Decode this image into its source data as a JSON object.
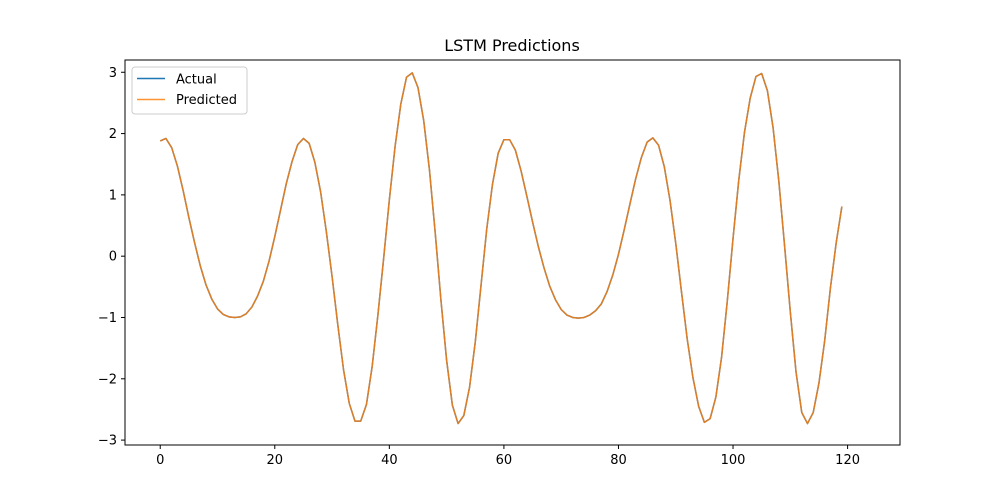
{
  "chart_data": {
    "type": "line",
    "title": "LSTM Predictions",
    "xlabel": "",
    "ylabel": "",
    "xlim": [
      -6.15,
      129.15
    ],
    "ylim": [
      -3.08,
      3.2
    ],
    "x_ticks": [
      0,
      20,
      40,
      60,
      80,
      100,
      120
    ],
    "y_ticks": [
      -3,
      -2,
      -1,
      0,
      1,
      2,
      3
    ],
    "x_tick_labels": [
      "0",
      "20",
      "40",
      "60",
      "80",
      "100",
      "120"
    ],
    "y_tick_labels": [
      "−3",
      "−2",
      "−1",
      "0",
      "1",
      "2",
      "3"
    ],
    "grid": false,
    "legend_position": "upper-left",
    "x_start": 0,
    "series": [
      {
        "name": "Actual",
        "color": "#1f77b4",
        "values": [
          1.88,
          1.92,
          1.77,
          1.47,
          1.07,
          0.63,
          0.22,
          -0.16,
          -0.47,
          -0.7,
          -0.86,
          -0.95,
          -0.99,
          -1.0,
          -0.99,
          -0.94,
          -0.83,
          -0.65,
          -0.41,
          -0.08,
          0.32,
          0.75,
          1.18,
          1.54,
          1.82,
          1.92,
          1.84,
          1.53,
          1.05,
          0.4,
          -0.33,
          -1.12,
          -1.85,
          -2.4,
          -2.69,
          -2.69,
          -2.42,
          -1.8,
          -0.96,
          -0.04,
          0.92,
          1.79,
          2.48,
          2.92,
          2.99,
          2.75,
          2.21,
          1.41,
          0.39,
          -0.71,
          -1.7,
          -2.43,
          -2.73,
          -2.6,
          -2.14,
          -1.4,
          -0.48,
          0.44,
          1.17,
          1.68,
          1.9,
          1.9,
          1.73,
          1.39,
          0.98,
          0.56,
          0.16,
          -0.19,
          -0.49,
          -0.71,
          -0.87,
          -0.96,
          -1.0,
          -1.01,
          -1.0,
          -0.96,
          -0.89,
          -0.78,
          -0.58,
          -0.31,
          0.03,
          0.43,
          0.85,
          1.26,
          1.61,
          1.86,
          1.93,
          1.81,
          1.46,
          0.91,
          0.21,
          -0.58,
          -1.35,
          -1.98,
          -2.45,
          -2.71,
          -2.65,
          -2.3,
          -1.65,
          -0.73,
          0.29,
          1.24,
          2.02,
          2.58,
          2.93,
          2.98,
          2.7,
          2.09,
          1.22,
          0.17,
          -0.91,
          -1.89,
          -2.55,
          -2.73,
          -2.55,
          -2.07,
          -1.38,
          -0.52,
          0.21,
          0.81
        ]
      },
      {
        "name": "Predicted",
        "color": "#ff7f0e",
        "values": [
          1.88,
          1.92,
          1.77,
          1.47,
          1.07,
          0.63,
          0.22,
          -0.16,
          -0.47,
          -0.7,
          -0.86,
          -0.95,
          -0.99,
          -1.0,
          -0.99,
          -0.94,
          -0.83,
          -0.65,
          -0.41,
          -0.08,
          0.32,
          0.75,
          1.18,
          1.54,
          1.82,
          1.92,
          1.84,
          1.53,
          1.05,
          0.4,
          -0.33,
          -1.12,
          -1.85,
          -2.4,
          -2.69,
          -2.69,
          -2.42,
          -1.8,
          -0.96,
          -0.04,
          0.92,
          1.79,
          2.48,
          2.92,
          2.99,
          2.75,
          2.21,
          1.41,
          0.39,
          -0.71,
          -1.7,
          -2.43,
          -2.73,
          -2.6,
          -2.14,
          -1.4,
          -0.48,
          0.44,
          1.17,
          1.68,
          1.9,
          1.9,
          1.73,
          1.39,
          0.98,
          0.56,
          0.16,
          -0.19,
          -0.49,
          -0.71,
          -0.87,
          -0.96,
          -1.0,
          -1.01,
          -1.0,
          -0.96,
          -0.89,
          -0.78,
          -0.58,
          -0.31,
          0.03,
          0.43,
          0.85,
          1.26,
          1.61,
          1.86,
          1.93,
          1.81,
          1.46,
          0.91,
          0.21,
          -0.58,
          -1.35,
          -1.98,
          -2.45,
          -2.71,
          -2.65,
          -2.3,
          -1.65,
          -0.73,
          0.29,
          1.24,
          2.02,
          2.58,
          2.93,
          2.98,
          2.7,
          2.09,
          1.22,
          0.17,
          -0.91,
          -1.89,
          -2.55,
          -2.73,
          -2.55,
          -2.07,
          -1.38,
          -0.52,
          0.21,
          0.81
        ]
      }
    ]
  }
}
